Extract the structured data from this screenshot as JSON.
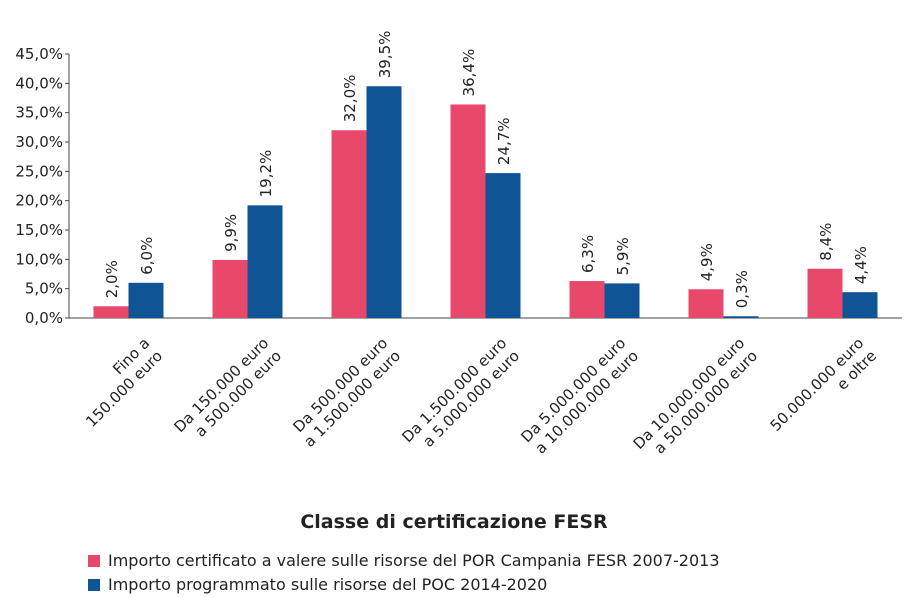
{
  "chart_data": {
    "type": "bar",
    "xlabel": "Classe di certificazione FESR",
    "categories": [
      "Fino a\n150.000 euro",
      "Da 150.000 euro\na 500.000 euro",
      "Da 500.000 euro\na 1.500.000 euro",
      "Da 1.500.000 euro\na 5.000.000 euro",
      "Da 5.000.000 euro\na 10.000.000 euro",
      "Da 10.000.000 euro\na 50.000.000 euro",
      "50.000.000 euro\ne oltre"
    ],
    "series": [
      {
        "name": "Importo certificato a valere sulle risorse del POR Campania FESR 2007-2013",
        "color": "#e8496b",
        "values": [
          2.0,
          9.9,
          32.0,
          36.4,
          6.3,
          4.9,
          8.4
        ],
        "value_labels": [
          "2,0%",
          "9,9%",
          "32,0%",
          "36,4%",
          "6,3%",
          "4,9%",
          "8,4%"
        ]
      },
      {
        "name": "Importo programmato sulle risorse del POC 2014-2020",
        "color": "#0f5596",
        "values": [
          6.0,
          19.2,
          39.5,
          24.7,
          5.9,
          0.3,
          4.4
        ],
        "value_labels": [
          "6,0%",
          "19,2%",
          "39,5%",
          "24,7%",
          "5,9%",
          "0,3%",
          "4,4%"
        ]
      }
    ],
    "ylim": [
      0,
      45
    ],
    "yticks": [
      {
        "value": 0,
        "label": "0,0%"
      },
      {
        "value": 5,
        "label": "5,0%"
      },
      {
        "value": 10,
        "label": "10,0%"
      },
      {
        "value": 15,
        "label": "15,0%"
      },
      {
        "value": 20,
        "label": "20,0%"
      },
      {
        "value": 25,
        "label": "25,0%"
      },
      {
        "value": 30,
        "label": "30,0%"
      },
      {
        "value": 35,
        "label": "35,0%"
      },
      {
        "value": 40,
        "label": "40,0%"
      },
      {
        "value": 45,
        "label": "45,0%"
      }
    ],
    "legend": "bottom"
  }
}
